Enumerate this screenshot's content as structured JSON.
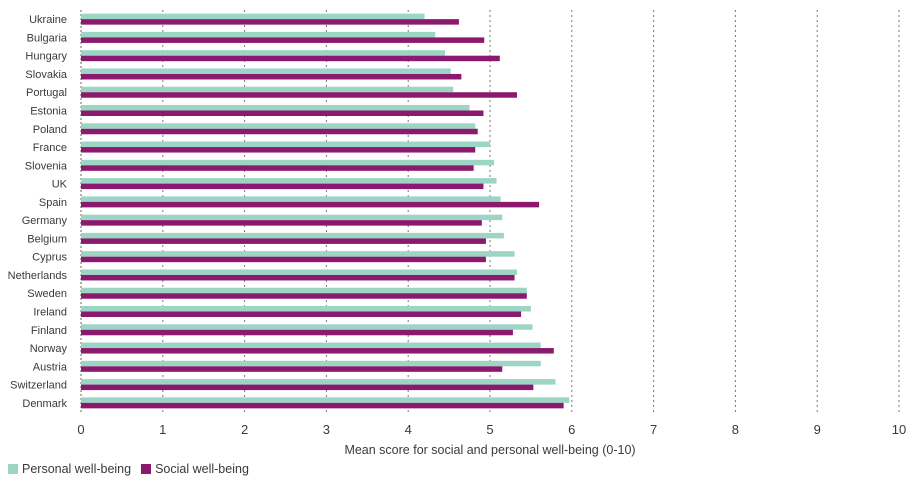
{
  "chart_data": {
    "type": "bar",
    "orientation": "horizontal",
    "categories": [
      "Ukraine",
      "Bulgaria",
      "Hungary",
      "Slovakia",
      "Portugal",
      "Estonia",
      "Poland",
      "France",
      "Slovenia",
      "UK",
      "Spain",
      "Germany",
      "Belgium",
      "Cyprus",
      "Netherlands",
      "Sweden",
      "Ireland",
      "Finland",
      "Norway",
      "Austria",
      "Switzerland",
      "Denmark"
    ],
    "series": [
      {
        "name": "Personal well-being",
        "color": "#9dd5c4",
        "values": [
          4.2,
          4.33,
          4.45,
          4.52,
          4.55,
          4.75,
          4.82,
          5.0,
          5.05,
          5.08,
          5.13,
          5.15,
          5.17,
          5.3,
          5.33,
          5.45,
          5.5,
          5.52,
          5.62,
          5.62,
          5.8,
          5.97
        ]
      },
      {
        "name": "Social well-being",
        "color": "#8b1a6e",
        "values": [
          4.62,
          4.93,
          5.12,
          4.65,
          5.33,
          4.92,
          4.85,
          4.82,
          4.8,
          4.92,
          5.6,
          4.9,
          4.95,
          4.95,
          5.3,
          5.45,
          5.38,
          5.28,
          5.78,
          5.15,
          5.53,
          5.9
        ]
      }
    ],
    "xlabel": "Mean score for social and personal well-being (0-10)",
    "ylabel": "",
    "xlim": [
      0,
      10
    ],
    "xticks": [
      0,
      1,
      2,
      3,
      4,
      5,
      6,
      7,
      8,
      9,
      10
    ],
    "grid": "vertical dotted",
    "legend_position": "bottom-left"
  }
}
